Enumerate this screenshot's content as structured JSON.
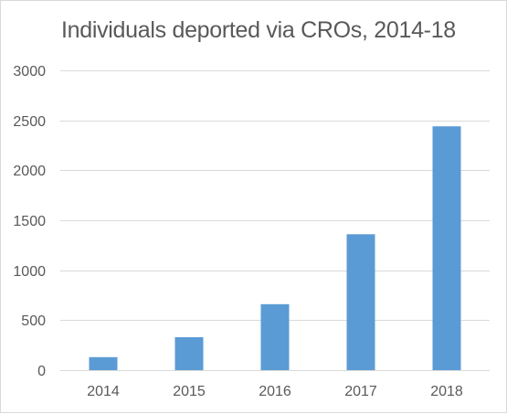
{
  "chart_data": {
    "type": "bar",
    "title": "Individuals  deported via CROs, 2014-18",
    "categories": [
      "2014",
      "2015",
      "2016",
      "2017",
      "2018"
    ],
    "values": [
      130,
      330,
      660,
      1360,
      2440
    ],
    "ylim": [
      0,
      3000
    ],
    "yticks": [
      0,
      500,
      1000,
      1500,
      2000,
      2500,
      3000
    ],
    "xlabel": "",
    "ylabel": "",
    "grid": true,
    "legend": "none",
    "colors": {
      "bar": "#5b9bd5",
      "grid": "#d9d9d9",
      "text": "#595959"
    }
  }
}
